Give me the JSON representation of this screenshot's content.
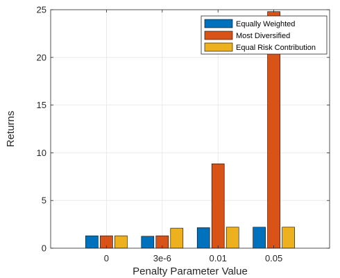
{
  "chart_data": {
    "type": "bar",
    "title": "",
    "xlabel": "Penalty Parameter Value",
    "ylabel": "Returns",
    "categories": [
      "0",
      "3e-6",
      "0.01",
      "0.05"
    ],
    "ylim": [
      0,
      25
    ],
    "yticks": [
      0,
      5,
      10,
      15,
      20,
      25
    ],
    "grid": true,
    "legend_position": "top-right",
    "series": [
      {
        "name": "Equally Weighted",
        "color": "#0072BD",
        "values": [
          1.3,
          1.25,
          2.15,
          2.2
        ]
      },
      {
        "name": "Most Diversified",
        "color": "#D95319",
        "values": [
          1.3,
          1.3,
          8.85,
          24.8
        ]
      },
      {
        "name": "Equal Risk Contribution",
        "color": "#EDB120",
        "values": [
          1.3,
          2.1,
          2.2,
          2.2
        ]
      }
    ]
  }
}
